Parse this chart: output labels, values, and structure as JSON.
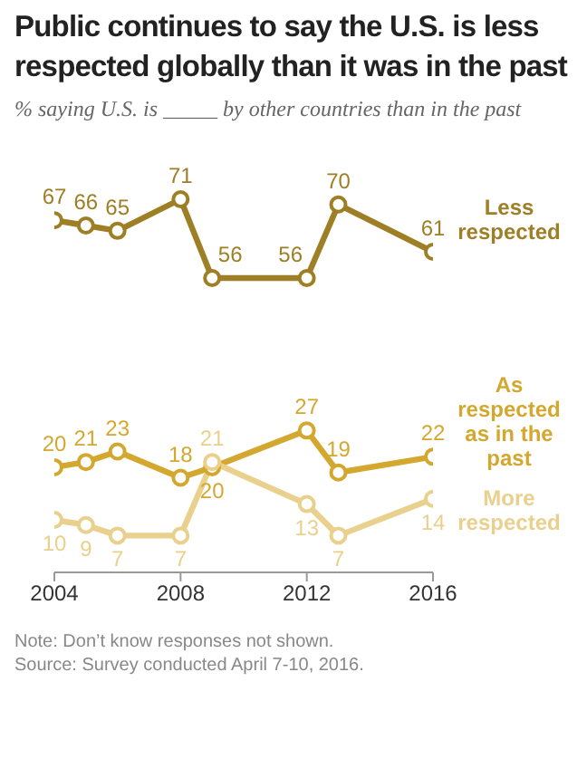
{
  "chart_data": {
    "type": "line",
    "title": "Public continues to say the U.S. is less respected globally than it was in the past",
    "subtitle": "% saying U.S. is _____ by other countries than in the past",
    "x": [
      2004,
      2005,
      2006,
      2008,
      2009,
      2012,
      2013,
      2016
    ],
    "xlim": [
      2004,
      2016
    ],
    "xticks": [
      2004,
      2008,
      2012,
      2016
    ],
    "series": [
      {
        "name": "Less respected",
        "color": "#9e7f26",
        "values": [
          67,
          66,
          65,
          71,
          56,
          56,
          70,
          61
        ]
      },
      {
        "name": "As respected as in the past",
        "color": "#d4a82f",
        "values": [
          20,
          21,
          23,
          18,
          20,
          27,
          19,
          22
        ]
      },
      {
        "name": "More respected",
        "color": "#e9d08d",
        "values": [
          10,
          9,
          7,
          7,
          21,
          13,
          7,
          14
        ]
      }
    ],
    "data_labels": true,
    "marker": "circle",
    "grid": false,
    "legend": false,
    "annotations": [
      "Note: Don’t know responses not shown.",
      "Source: Survey conducted April 7-10, 2016."
    ]
  }
}
